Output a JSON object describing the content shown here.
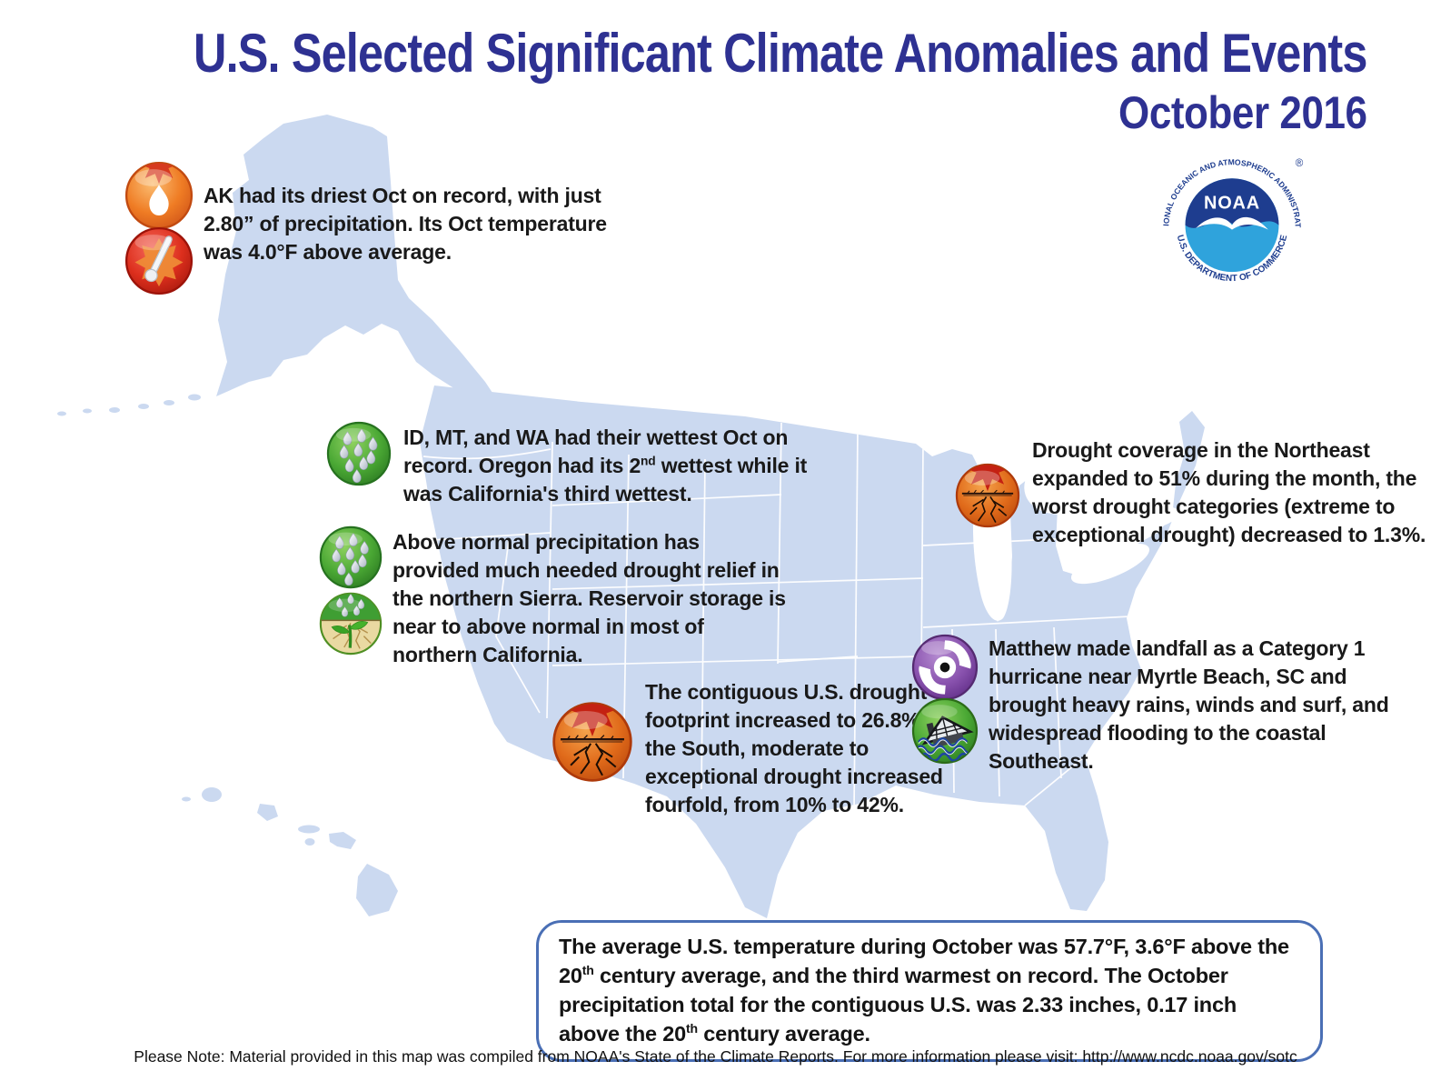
{
  "title": {
    "line1": "U.S. Selected Significant Climate Anomalies and Events",
    "line2": "October 2016"
  },
  "logo": {
    "name": "NOAA",
    "arc_top": "NATIONAL OCEANIC AND ATMOSPHERIC ADMINISTRATION",
    "arc_bottom": "U.S. DEPARTMENT OF COMMERCE",
    "registered_mark": "®"
  },
  "callouts": [
    {
      "region": "alaska",
      "icons": [
        "dryness-icon",
        "high-temperature-icon"
      ],
      "text": "AK had its driest Oct on record, with just 2.80” of precipitation. Its Oct temperature was 4.0°F above average."
    },
    {
      "region": "pacific-northwest",
      "icons": [
        "heavy-rain-icon"
      ],
      "segments": [
        {
          "t": "ID, MT, and WA had their wettest Oct on record. Oregon had its 2"
        },
        {
          "t": "nd",
          "sup": true
        },
        {
          "t": " wettest while it was California's third wettest."
        }
      ]
    },
    {
      "region": "northern-california",
      "icons": [
        "heavy-rain-icon",
        "drought-relief-icon"
      ],
      "text": "Above normal precipitation has provided much needed drought relief in the northern Sierra. Reservoir storage is near to above normal in most of northern California."
    },
    {
      "region": "south",
      "icons": [
        "drought-icon"
      ],
      "text": "The contiguous U.S. drought footprint increased to 26.8%. In the South, moderate to exceptional drought increased fourfold, from 10% to 42%."
    },
    {
      "region": "northeast",
      "icons": [
        "drought-icon"
      ],
      "text": "Drought coverage in the Northeast expanded to 51% during the month, the worst drought categories (extreme to exceptional drought) decreased to 1.3%."
    },
    {
      "region": "southeast",
      "icons": [
        "hurricane-icon",
        "flooding-icon"
      ],
      "text": "Matthew made landfall as a Category 1 hurricane near Myrtle Beach, SC and brought heavy rains, winds and surf, and widespread flooding to the coastal Southeast."
    }
  ],
  "summary": {
    "segments": [
      {
        "t": "The average U.S. temperature during October was 57.7°F, 3.6°F above the 20"
      },
      {
        "t": "th",
        "sup": true
      },
      {
        "t": " century average, and the third warmest on record. The October precipitation total for the contiguous U.S. was 2.33 inches, 0.17 inch above the 20"
      },
      {
        "t": "th",
        "sup": true
      },
      {
        "t": " century average."
      }
    ]
  },
  "footer": {
    "note": "Please Note: Material provided in this map was compiled from NOAA's State of the Climate Reports. For more information please visit: http://www.ncdc.noaa.gov/sotc"
  },
  "colors": {
    "title_navy": "#2e3192",
    "map_fill": "#cbd9f0",
    "state_line": "#ffffff",
    "summary_border": "#4a6fb5",
    "body_text": "#191919",
    "noaa_navy": "#1e3d8f",
    "noaa_cerulean": "#2fa3dc"
  }
}
